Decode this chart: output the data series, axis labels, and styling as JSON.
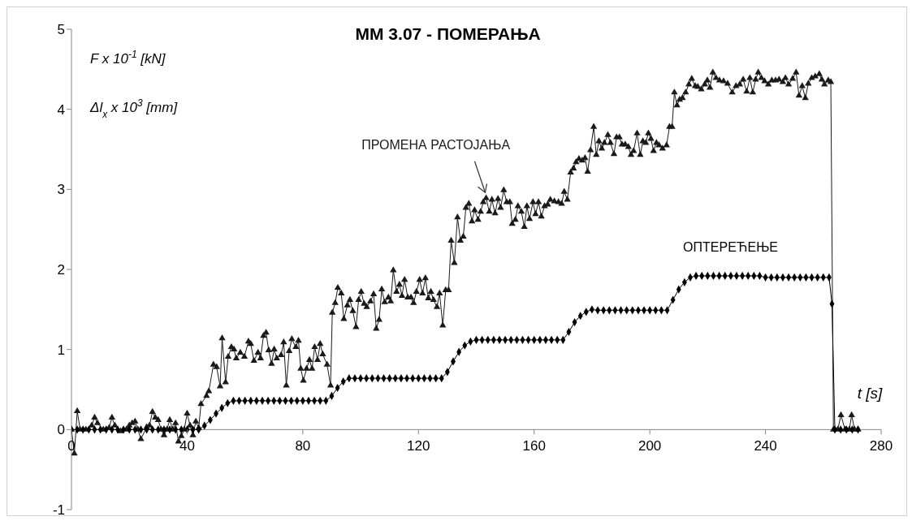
{
  "chart_data": {
    "type": "line",
    "title": "ММ 3.07 - ПОМЕРАЊА",
    "xlabel": "t [s]",
    "ylabel": "F x 10$^{-1}$ [kN]",
    "annotations": [
      "Δl$_{x}$ x 10$^{3}$ [mm]"
    ],
    "xlim": [
      0,
      280
    ],
    "xticks": [
      0,
      40,
      80,
      120,
      160,
      200,
      240,
      280
    ],
    "ylim": [
      -1,
      5
    ],
    "yticks": [
      -1,
      0,
      1,
      2,
      3,
      4,
      5
    ],
    "legend": false,
    "line_style": "solid",
    "series": [
      {
        "name": "ПРОМЕНА РАСТОЈАЊА",
        "color": "#1a1a1a",
        "marker": "triangle",
        "x": [
          0,
          1,
          2,
          3,
          5,
          7,
          8,
          9,
          11,
          13,
          14,
          15,
          17,
          19,
          20,
          21,
          22,
          23,
          24,
          26,
          27,
          28,
          29,
          30,
          31,
          32,
          33,
          34,
          35,
          36,
          37,
          38,
          39,
          40,
          41,
          42,
          43,
          44,
          44.8,
          46.7,
          47.5,
          49.1,
          50.2,
          51.4,
          52.1,
          53.3,
          54.2,
          55.3,
          56.2,
          57,
          58.4,
          59.8,
          61.2,
          62,
          63.1,
          64.5,
          65.4,
          66.4,
          67.3,
          68.2,
          69.2,
          70.1,
          71,
          72.5,
          73.4,
          74.3,
          75.3,
          76.2,
          77.6,
          78.5,
          79.3,
          80.2,
          81.3,
          82.3,
          83.2,
          84.1,
          85.1,
          86,
          86.9,
          88.4,
          89.6,
          90.2,
          91.2,
          92.1,
          93.3,
          94.2,
          95.4,
          96.3,
          97.3,
          98.4,
          99.3,
          100.2,
          101.2,
          102.1,
          103.4,
          104.5,
          105.4,
          106.4,
          107.3,
          108.3,
          109.6,
          110.4,
          111.3,
          112.4,
          113.4,
          114.3,
          115.2,
          116.3,
          117.4,
          118.3,
          119.3,
          120.4,
          121.4,
          122.4,
          123.4,
          124.3,
          125.2,
          126.4,
          127.3,
          128.4,
          129.4,
          130.4,
          131.3,
          132.4,
          133.5,
          134.5,
          135.5,
          136.4,
          137.4,
          138.5,
          139.4,
          140.6,
          141.5,
          142.4,
          143.4,
          144.5,
          145.4,
          146.5,
          147.5,
          148.4,
          149.5,
          150.5,
          151.6,
          152.4,
          153.5,
          154.4,
          155.6,
          156.6,
          157.5,
          158.4,
          159.6,
          160.5,
          161.5,
          162.5,
          163.6,
          164.7,
          165.6,
          167,
          168.4,
          169.5,
          170.4,
          171.5,
          172.6,
          173.6,
          174.5,
          175.5,
          176.6,
          177.6,
          178.5,
          179.5,
          180.6,
          181.5,
          182.4,
          183.4,
          184.3,
          185.5,
          186.4,
          187.6,
          188.5,
          189.5,
          190.4,
          191.5,
          192.6,
          193.5,
          194.4,
          195.6,
          196.7,
          197.6,
          198.6,
          199.5,
          200.4,
          201.3,
          202.3,
          203.2,
          204.4,
          205.8,
          206.8,
          207.7,
          208.5,
          209.4,
          210.3,
          211.3,
          212.4,
          213.5,
          214.5,
          215.7,
          216.6,
          217.8,
          219,
          219.9,
          220.8,
          221.8,
          222.9,
          224.1,
          225.5,
          226.9,
          228.5,
          229.8,
          231.1,
          232.3,
          233.5,
          234.6,
          235.6,
          236.6,
          237.5,
          238.6,
          239.7,
          241,
          242.2,
          243.5,
          244.7,
          246,
          246.9,
          248,
          249.4,
          250.6,
          251.6,
          252.7,
          253.8,
          254.8,
          256,
          257.2,
          258.6,
          259.5,
          260.4,
          261.7,
          262.6,
          263.5,
          265,
          266.1,
          267.5,
          269,
          269.8,
          270.8,
          272
        ],
        "values": [
          0,
          -0.3,
          0.23,
          0,
          0,
          0.05,
          0.15,
          0.08,
          0,
          0.02,
          0.15,
          0.05,
          -0.02,
          0,
          0.05,
          0.08,
          0.1,
          0,
          -0.12,
          0.03,
          0.05,
          0.22,
          0.15,
          0.12,
          0,
          -0.07,
          0,
          0.12,
          0,
          0.08,
          -0.15,
          -0.08,
          0,
          0.2,
          0.05,
          -0.07,
          0.1,
          0.02,
          0.32,
          0.42,
          0.48,
          0.81,
          0.78,
          0.54,
          1.14,
          0.59,
          0.91,
          1.03,
          1,
          0.89,
          0.96,
          0.91,
          1.1,
          1.07,
          0.86,
          0.96,
          0.89,
          1.17,
          1.21,
          0.99,
          0.82,
          1,
          0.89,
          0.93,
          1.09,
          0.55,
          0.98,
          1.13,
          1.03,
          1.11,
          0.76,
          0.61,
          0.76,
          0.87,
          0.76,
          1.03,
          0.87,
          1.07,
          0.94,
          0.81,
          0.55,
          1.46,
          1.58,
          1.77,
          1.7,
          1.38,
          1.55,
          1.62,
          1.48,
          1.28,
          1.62,
          1.72,
          1.57,
          1.53,
          1.6,
          1.69,
          1.26,
          1.37,
          1.75,
          1.59,
          1.65,
          1.6,
          1.99,
          1.72,
          1.81,
          1.67,
          1.87,
          1.65,
          1.65,
          1.58,
          1.72,
          1.87,
          1.7,
          1.89,
          1.64,
          1.72,
          1.62,
          1.53,
          1.7,
          1.3,
          1.74,
          1.74,
          2.36,
          2.08,
          2.65,
          2.36,
          2.41,
          2.77,
          2.82,
          2.6,
          2.74,
          2.62,
          2.72,
          2.84,
          2.89,
          2.72,
          2.87,
          2.7,
          2.88,
          2.77,
          2.99,
          2.84,
          2.84,
          2.57,
          2.62,
          2.79,
          2.72,
          2.53,
          2.79,
          2.63,
          2.84,
          2.69,
          2.84,
          2.66,
          2.79,
          2.81,
          2.87,
          2.85,
          2.84,
          2.82,
          2.97,
          2.87,
          3.21,
          3.26,
          3.34,
          3.38,
          3.36,
          3.39,
          3.22,
          3.49,
          3.78,
          3.43,
          3.6,
          3.51,
          3.58,
          3.68,
          3.58,
          3.44,
          3.65,
          3.65,
          3.56,
          3.56,
          3.53,
          3.43,
          3.48,
          3.7,
          3.43,
          3.6,
          3.58,
          3.7,
          3.63,
          3.48,
          3.58,
          3.55,
          3.51,
          3.55,
          3.78,
          3.78,
          4.21,
          4.05,
          4.12,
          4.14,
          4.21,
          4.31,
          4.38,
          4.29,
          4.28,
          4.25,
          4.31,
          4.36,
          4.27,
          4.46,
          4.39,
          4.36,
          4.35,
          4.32,
          4.21,
          4.29,
          4.31,
          4.37,
          4.22,
          4.39,
          4.21,
          4.37,
          4.46,
          4.39,
          4.35,
          4.31,
          4.36,
          4.36,
          4.37,
          4.34,
          4.39,
          4.31,
          4.38,
          4.46,
          4.17,
          4.29,
          4.14,
          4.32,
          4.39,
          4.41,
          4.44,
          4.37,
          4.31,
          4.36,
          4.34,
          0,
          0,
          0.18,
          0,
          0,
          0.18,
          0,
          0
        ]
      },
      {
        "name": "ОПТЕРЕЋЕЊЕ",
        "color": "#000000",
        "marker": "diamond",
        "x": [
          0,
          2,
          4,
          6,
          8,
          10,
          12,
          14,
          16,
          18,
          20,
          22,
          24,
          26,
          28,
          30,
          32,
          34,
          36,
          38,
          40,
          42,
          44,
          46,
          48,
          50,
          52,
          54,
          56,
          58,
          60,
          62,
          64,
          66,
          68,
          70,
          72,
          74,
          76,
          78,
          80,
          82,
          84,
          86,
          88,
          90,
          92,
          94,
          96,
          98,
          100,
          102,
          104,
          106,
          108,
          110,
          112,
          114,
          116,
          118,
          120,
          122,
          124,
          126,
          128,
          130,
          132,
          134,
          136,
          138,
          140,
          142,
          144,
          146,
          148,
          150,
          152,
          154,
          156,
          158,
          160,
          162,
          164,
          166,
          168,
          170,
          172,
          174,
          176,
          178,
          180,
          182,
          184,
          186,
          188,
          190,
          192,
          194,
          196,
          198,
          200,
          202,
          204,
          206,
          208,
          210,
          212,
          214,
          216,
          218,
          220,
          222,
          224,
          226,
          228,
          230,
          232,
          234,
          236,
          238,
          240,
          242,
          244,
          246,
          248,
          250,
          252,
          254,
          256,
          258,
          260,
          262,
          263,
          264,
          266,
          268,
          270,
          272
        ],
        "values": [
          0,
          0,
          0,
          0,
          0,
          0,
          0,
          0,
          0,
          0,
          0,
          0,
          0,
          0,
          0,
          0,
          0,
          0,
          0,
          0,
          0,
          0,
          0,
          0.05,
          0.12,
          0.2,
          0.27,
          0.33,
          0.36,
          0.36,
          0.36,
          0.36,
          0.36,
          0.36,
          0.36,
          0.36,
          0.36,
          0.36,
          0.36,
          0.36,
          0.36,
          0.36,
          0.36,
          0.36,
          0.36,
          0.42,
          0.52,
          0.6,
          0.64,
          0.64,
          0.64,
          0.64,
          0.64,
          0.64,
          0.64,
          0.64,
          0.64,
          0.64,
          0.64,
          0.64,
          0.64,
          0.64,
          0.64,
          0.64,
          0.64,
          0.72,
          0.85,
          0.97,
          1.05,
          1.1,
          1.12,
          1.12,
          1.12,
          1.12,
          1.12,
          1.12,
          1.12,
          1.12,
          1.12,
          1.12,
          1.12,
          1.12,
          1.12,
          1.12,
          1.12,
          1.12,
          1.22,
          1.34,
          1.42,
          1.47,
          1.5,
          1.49,
          1.49,
          1.49,
          1.49,
          1.49,
          1.49,
          1.49,
          1.49,
          1.49,
          1.49,
          1.49,
          1.49,
          1.49,
          1.62,
          1.75,
          1.84,
          1.9,
          1.92,
          1.92,
          1.92,
          1.92,
          1.92,
          1.92,
          1.92,
          1.92,
          1.92,
          1.92,
          1.92,
          1.92,
          1.9,
          1.9,
          1.9,
          1.9,
          1.9,
          1.9,
          1.9,
          1.9,
          1.9,
          1.9,
          1.9,
          1.9,
          1.57,
          0,
          0,
          0,
          0,
          0
        ]
      }
    ]
  }
}
